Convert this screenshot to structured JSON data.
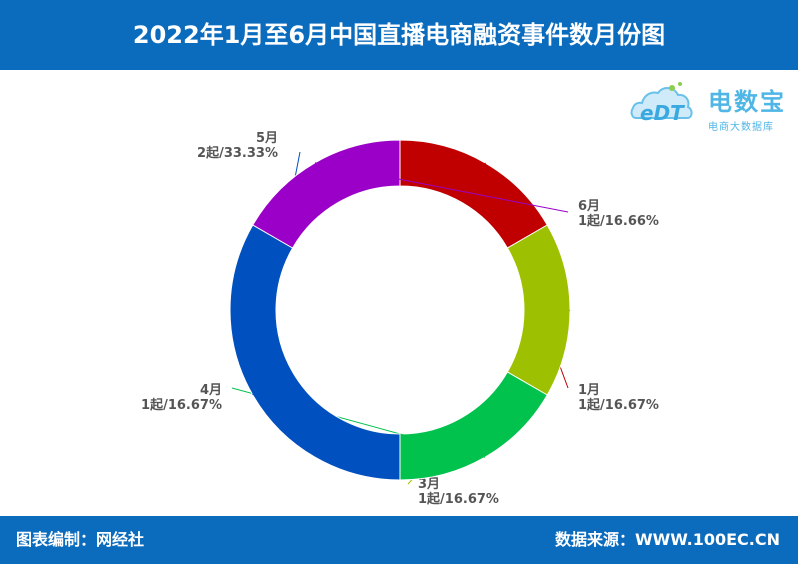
{
  "header": {
    "title": "2022年1月至6月中国直播电商融资事件数月份图"
  },
  "logo": {
    "name": "电数宝",
    "subtitle": "电商大数据库",
    "mark": "eDT"
  },
  "footer": {
    "left": "图表编制：网经社",
    "right": "数据来源：WWW.100EC.CN"
  },
  "chart_data": {
    "type": "pie",
    "donut": true,
    "start_angle_deg": 90,
    "direction": "clockwise",
    "slices": [
      {
        "name": "1月",
        "value": 1,
        "label": "1起/16.67%",
        "color": "#c00000"
      },
      {
        "name": "3月",
        "value": 1,
        "label": "1起/16.67%",
        "color": "#9dc100"
      },
      {
        "name": "4月",
        "value": 1,
        "label": "1起/16.67%",
        "color": "#00c24c"
      },
      {
        "name": "5月",
        "value": 2,
        "label": "2起/33.33%",
        "color": "#0050bf"
      },
      {
        "name": "6月",
        "value": 1,
        "label": "1起/16.66%",
        "color": "#9a00c8"
      }
    ],
    "legend": "none"
  }
}
